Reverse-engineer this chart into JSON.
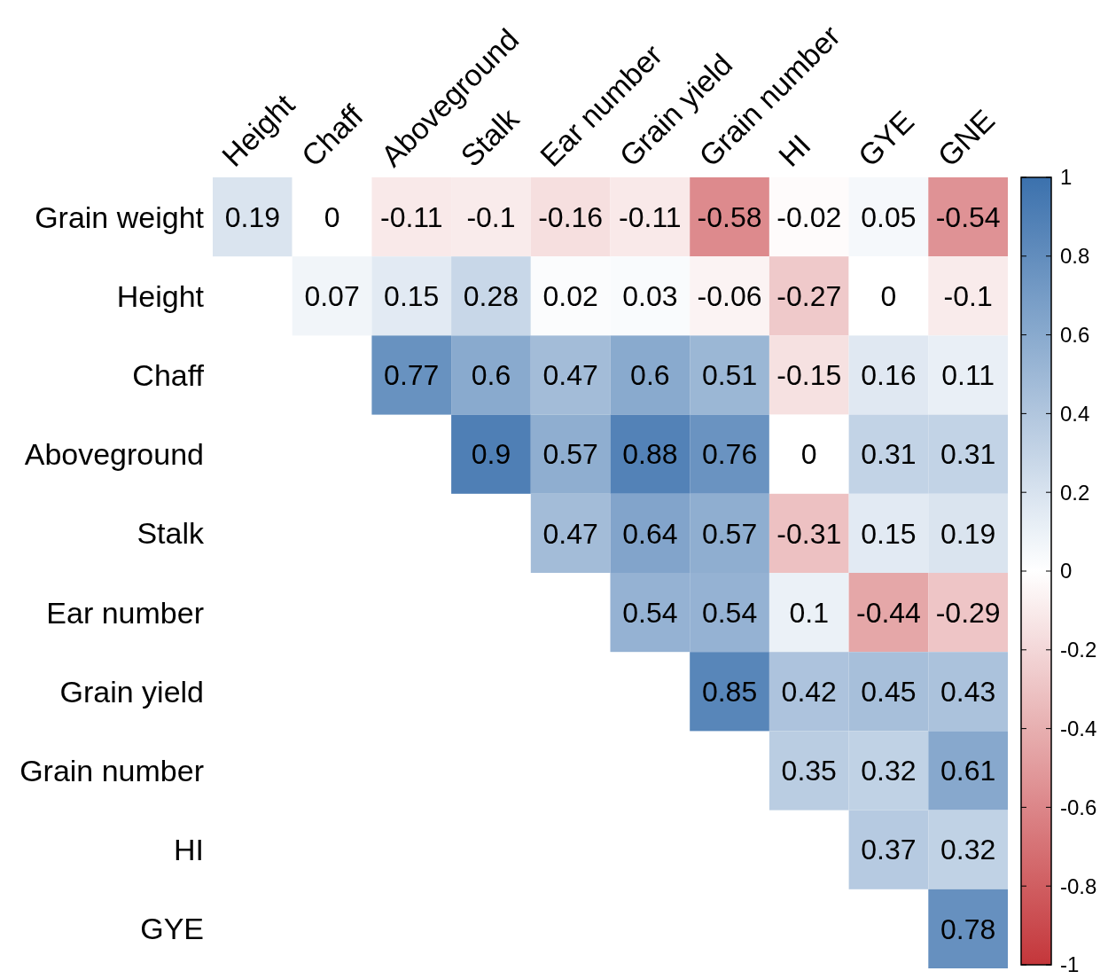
{
  "chart_data": {
    "type": "heatmap",
    "categories": [
      "Height",
      "Chaff",
      "Aboveground",
      "Stalk",
      "Ear number",
      "Grain yield",
      "Grain number",
      "HI",
      "GYE",
      "GNE"
    ],
    "y_categories": [
      "Grain weight",
      "Height",
      "Chaff",
      "Aboveground",
      "Stalk",
      "Ear number",
      "Grain yield",
      "Grain number",
      "HI",
      "GYE"
    ],
    "cells": [
      [
        0.19,
        0,
        -0.11,
        -0.1,
        -0.16,
        -0.11,
        -0.58,
        -0.02,
        0.05,
        -0.54
      ],
      [
        null,
        0.07,
        0.15,
        0.28,
        0.02,
        0.03,
        -0.06,
        -0.27,
        0,
        -0.1
      ],
      [
        null,
        null,
        0.77,
        0.6,
        0.47,
        0.6,
        0.51,
        -0.15,
        0.16,
        0.11
      ],
      [
        null,
        null,
        null,
        0.9,
        0.57,
        0.88,
        0.76,
        0,
        0.31,
        0.31
      ],
      [
        null,
        null,
        null,
        null,
        0.47,
        0.64,
        0.57,
        -0.31,
        0.15,
        0.19
      ],
      [
        null,
        null,
        null,
        null,
        null,
        0.54,
        0.54,
        0.1,
        -0.44,
        -0.29
      ],
      [
        null,
        null,
        null,
        null,
        null,
        null,
        0.85,
        0.42,
        0.45,
        0.43
      ],
      [
        null,
        null,
        null,
        null,
        null,
        null,
        null,
        0.35,
        0.32,
        0.61
      ],
      [
        null,
        null,
        null,
        null,
        null,
        null,
        null,
        null,
        0.37,
        0.32
      ],
      [
        null,
        null,
        null,
        null,
        null,
        null,
        null,
        null,
        null,
        0.78
      ]
    ],
    "data_labels": true,
    "clim": [
      -1,
      1
    ],
    "cticks": [
      -1,
      -0.8,
      -0.6,
      -0.4,
      -0.2,
      0,
      0.2,
      0.4,
      0.6,
      0.8,
      1
    ]
  }
}
